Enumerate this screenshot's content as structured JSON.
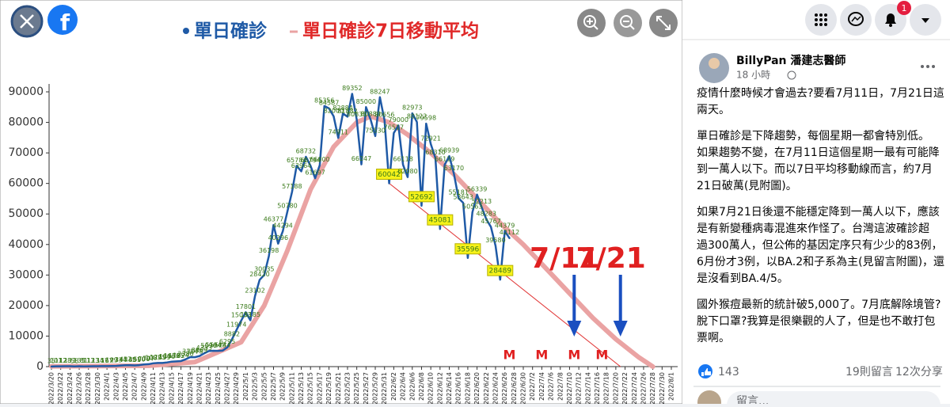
{
  "chart_data": {
    "type": "line",
    "xlim": [
      "2022/3/20",
      "2022/8/1"
    ],
    "xticks": [
      "2022/3/20",
      "2022/3/22",
      "2022/3/24",
      "2022/3/26",
      "2022/3/28",
      "2022/3/30",
      "2022/4/1",
      "2022/4/3",
      "2022/4/5",
      "2022/4/7",
      "2022/4/9",
      "2022/4/11",
      "2022/4/13",
      "2022/4/15",
      "2022/4/17",
      "2022/4/19",
      "2022/4/21",
      "2022/4/23",
      "2022/4/25",
      "2022/4/27",
      "2022/4/29",
      "2022/5/1",
      "2022/5/3",
      "2022/5/5",
      "2022/5/7",
      "2022/5/9",
      "2022/5/11",
      "2022/5/13",
      "2022/5/15",
      "2022/5/17",
      "2022/5/19",
      "2022/5/21",
      "2022/5/23",
      "2022/5/25",
      "2022/5/27",
      "2022/5/29",
      "2022/5/31",
      "2022/6/2",
      "2022/6/4",
      "2022/6/6",
      "2022/6/8",
      "2022/6/10",
      "2022/6/12",
      "2022/6/14",
      "2022/6/16",
      "2022/6/18",
      "2022/6/20",
      "2022/6/22",
      "2022/6/24",
      "2022/6/26",
      "2022/6/28",
      "2022/6/30",
      "2022/7/2",
      "2022/7/4",
      "2022/7/6",
      "2022/7/8",
      "2022/7/10",
      "2022/7/12",
      "2022/7/14",
      "2022/7/16",
      "2022/7/18",
      "2022/7/20",
      "2022/7/22",
      "2022/7/24",
      "2022/7/26",
      "2022/7/28",
      "2022/7/30",
      "2022/8/1"
    ],
    "ylim": [
      0,
      90000
    ],
    "yticks": [
      0,
      10000,
      20000,
      30000,
      40000,
      50000,
      60000,
      70000,
      80000,
      90000
    ],
    "series": [
      {
        "name": "單日確診",
        "color": "#1f5aa6",
        "x": [
          "2022/3/20",
          "2022/3/21",
          "2022/3/22",
          "2022/3/23",
          "2022/3/24",
          "2022/3/25",
          "2022/3/26",
          "2022/3/27",
          "2022/3/28",
          "2022/3/29",
          "2022/3/30",
          "2022/3/31",
          "2022/4/1",
          "2022/4/2",
          "2022/4/3",
          "2022/4/4",
          "2022/4/5",
          "2022/4/6",
          "2022/4/7",
          "2022/4/8",
          "2022/4/9",
          "2022/4/10",
          "2022/4/11",
          "2022/4/12",
          "2022/4/13",
          "2022/4/14",
          "2022/4/15",
          "2022/4/16",
          "2022/4/17",
          "2022/4/18",
          "2022/4/19",
          "2022/4/20",
          "2022/4/21",
          "2022/4/22",
          "2022/4/23",
          "2022/4/24",
          "2022/4/25",
          "2022/4/26",
          "2022/4/27",
          "2022/4/28",
          "2022/4/29",
          "2022/4/30",
          "2022/5/1",
          "2022/5/2",
          "2022/5/3",
          "2022/5/4",
          "2022/5/5",
          "2022/5/6",
          "2022/5/7",
          "2022/5/8",
          "2022/5/9",
          "2022/5/10",
          "2022/5/11",
          "2022/5/12",
          "2022/5/13",
          "2022/5/14",
          "2022/5/15",
          "2022/5/16",
          "2022/5/17",
          "2022/5/18",
          "2022/5/19",
          "2022/5/20",
          "2022/5/21",
          "2022/5/22",
          "2022/5/23",
          "2022/5/24",
          "2022/5/25",
          "2022/5/26",
          "2022/5/27",
          "2022/5/28",
          "2022/5/29",
          "2022/5/30",
          "2022/5/31",
          "2022/6/1",
          "2022/6/2",
          "2022/6/3",
          "2022/6/4",
          "2022/6/5",
          "2022/6/6",
          "2022/6/7",
          "2022/6/8",
          "2022/6/9",
          "2022/6/10",
          "2022/6/11",
          "2022/6/12",
          "2022/6/13",
          "2022/6/14",
          "2022/6/15",
          "2022/6/16",
          "2022/6/17",
          "2022/6/18",
          "2022/6/19",
          "2022/6/20",
          "2022/6/21",
          "2022/6/22",
          "2022/6/23",
          "2022/6/24",
          "2022/6/25",
          "2022/6/26",
          "2022/6/27"
        ],
        "values": [
          35,
          101,
          112,
          128,
          133,
          58,
          135,
          81,
          113,
          123,
          134,
          157,
          167,
          199,
          233,
          344,
          457,
          445,
          381,
          500,
          700,
          797,
          1087,
          1205,
          1199,
          1376,
          1636,
          1725,
          1824,
          2386,
          3114,
          3078,
          3469,
          4333,
          5096,
          5194,
          5148,
          5244,
          6295,
          8882,
          11974,
          15033,
          17801,
          15185,
          23102,
          28420,
          30035,
          36198,
          46377,
          40296,
          44294,
          50780,
          57188,
          65784,
          63964,
          68732,
          65794,
          61697,
          66000,
          85356,
          84587,
          82000,
          74911,
          82884,
          81882,
          89352,
          80835,
          66247,
          85000,
          80880,
          75530,
          88247,
          80656,
          60042,
          76517,
          79000,
          66118,
          62080,
          82973,
          80122,
          52692,
          79598,
          72921,
          68310,
          45081,
          66119,
          68939,
          63170,
          55181,
          53643,
          35596,
          50563,
          56339,
          52213,
          48283,
          45767,
          39580,
          28489,
          44379,
          42112
        ],
        "highlighted": [
          73,
          80,
          84,
          90,
          97
        ]
      },
      {
        "name": "單日確診7日移動平均",
        "color": "#eaa3a3",
        "x": [
          "2022/3/20",
          "2022/4/10",
          "2022/4/20",
          "2022/4/30",
          "2022/5/5",
          "2022/5/10",
          "2022/5/15",
          "2022/5/20",
          "2022/5/25",
          "2022/5/28",
          "2022/6/1",
          "2022/6/5",
          "2022/6/10",
          "2022/6/15",
          "2022/6/20",
          "2022/6/25",
          "2022/6/30",
          "2022/7/5",
          "2022/7/10",
          "2022/7/15",
          "2022/7/20",
          "2022/7/25",
          "2022/7/28"
        ],
        "values": [
          100,
          300,
          1500,
          8000,
          20000,
          38000,
          58000,
          72000,
          80000,
          82000,
          80000,
          76000,
          70000,
          63000,
          55000,
          47000,
          40000,
          32000,
          24000,
          16000,
          9000,
          3000,
          0
        ]
      }
    ],
    "trend_line": {
      "color": "#e03030",
      "x": [
        "2022/6/1",
        "2022/7/21"
      ],
      "values": [
        60042,
        0
      ]
    },
    "markers": {
      "text": "M",
      "x": [
        "2022/6/27",
        "2022/7/4",
        "2022/7/11",
        "2022/7/17"
      ]
    },
    "annotations": [
      {
        "text": "7/11",
        "x": "2022/7/11"
      },
      {
        "text": "7/21",
        "x": "2022/7/21"
      }
    ]
  },
  "header": {
    "notification_count": "1"
  },
  "post": {
    "author": "BillyPan 潘建志醫師",
    "time": "18 小時",
    "paragraphs": [
      [
        "疫情什麼時候才會過去?要看7月11日，7月21日這",
        "兩天。"
      ],
      [
        "單日確診是下降趨勢，每個星期一都會特別低。",
        "如果趨勢不變，在7月11日這個星期一最有可能降",
        "到一萬人以下。而以7日平均移動線而言，約7月",
        "21日破萬(見附圖)。"
      ],
      [
        "如果7月21日後還不能穩定降到一萬人以下，應該",
        "是有新變種病毒混進來作怪了。台灣這波確診超",
        "過300萬人，但公佈的基因定序只有少少的83例，",
        "6月份才3例，以BA.2和子系為主(見留言附圖)，還",
        "是沒看到BA.4/5。"
      ],
      [
        "國外猴痘最新的統計破5,000了。7月底解除境管?",
        "脫下口罩?我算是很樂觀的人了，但是也不敢打包",
        "票啊。"
      ]
    ],
    "reactions": "143",
    "comments": "19則留言",
    "shares": "12次分享",
    "comment_placeholder": "留言..."
  }
}
